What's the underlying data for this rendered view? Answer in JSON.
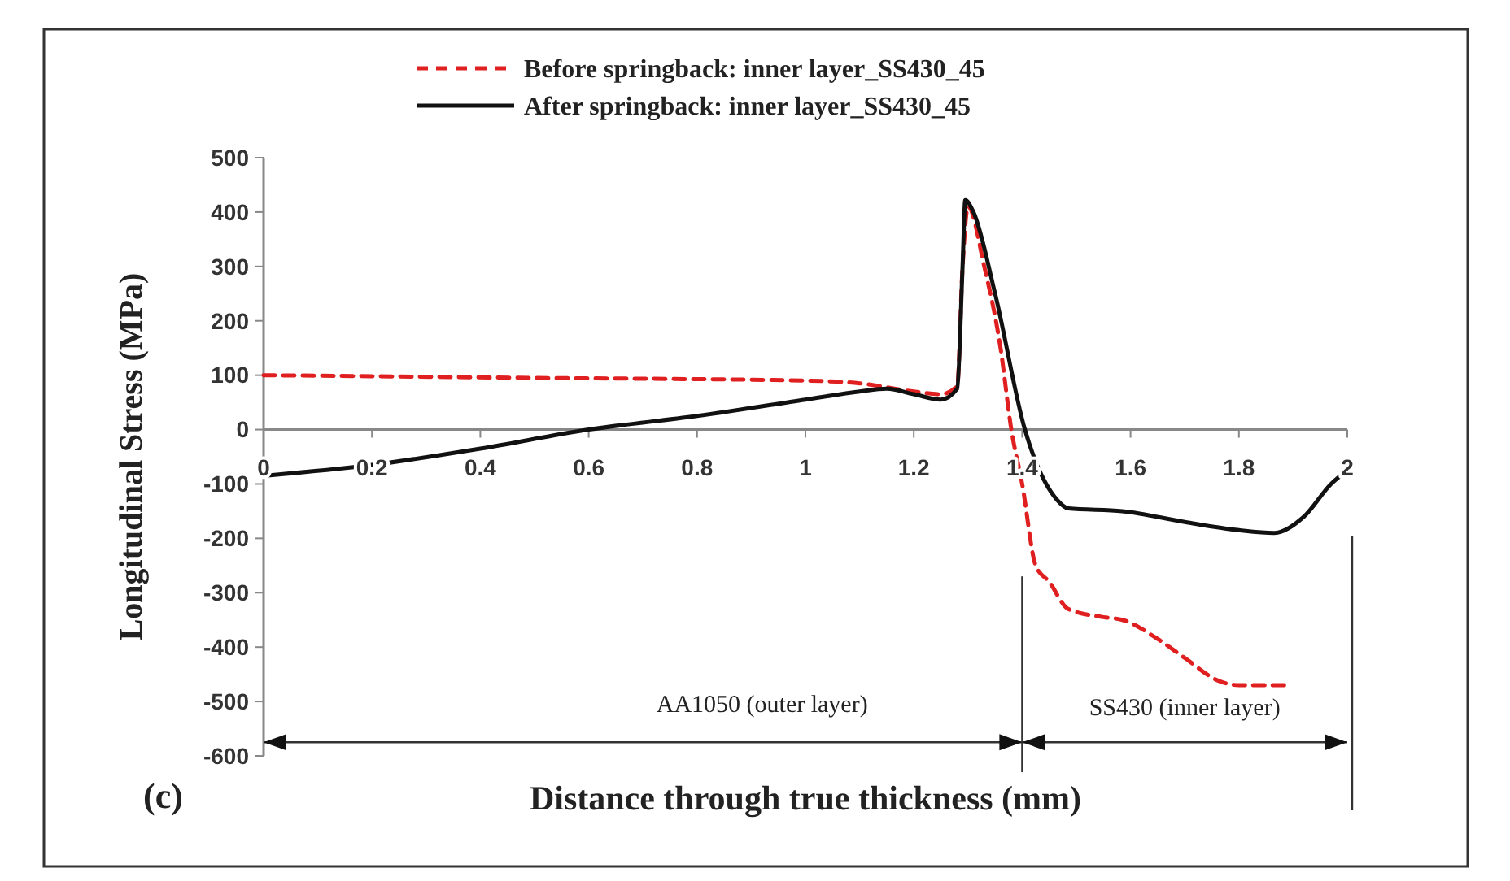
{
  "chart_data": {
    "type": "line",
    "xlabel": "Distance through true thickness (mm)",
    "ylabel": "Longitudinal Stress (MPa)",
    "xlim": [
      0,
      2
    ],
    "xticks": [
      0,
      0.2,
      0.4,
      0.6,
      0.8,
      1,
      1.2,
      1.4,
      1.6,
      1.8,
      2
    ],
    "ylim": [
      -600,
      500
    ],
    "yticks": [
      -600,
      -500,
      -400,
      -300,
      -200,
      -100,
      0,
      100,
      200,
      300,
      400,
      500
    ],
    "grid": false,
    "legend": "top",
    "annotations": [
      "AA1050 (outer layer)",
      "SS430 (inner layer)",
      "(c)"
    ],
    "series": [
      {
        "name": "Before springback: inner layer_SS430_45",
        "color": "#e02020",
        "line_style": "dashed",
        "x": [
          0,
          0.5,
          1.0,
          1.1,
          1.2,
          1.25,
          1.28,
          1.29,
          1.3,
          1.33,
          1.36,
          1.38,
          1.4,
          1.425,
          1.45,
          1.485,
          1.55,
          1.585,
          1.65,
          1.7,
          1.765,
          1.8,
          1.895
        ],
        "values": [
          100,
          95,
          90,
          85,
          70,
          65,
          80,
          300,
          410,
          300,
          150,
          0,
          -100,
          -250,
          -280,
          -330,
          -345,
          -350,
          -385,
          -420,
          -463,
          -470,
          -470
        ]
      },
      {
        "name": "After springback: inner layer_SS430_45",
        "color": "#111111",
        "line_style": "solid",
        "x": [
          0,
          0.2,
          0.4,
          0.6,
          0.8,
          1.0,
          1.1,
          1.15,
          1.2,
          1.25,
          1.28,
          1.29,
          1.295,
          1.31,
          1.35,
          1.405,
          1.465,
          1.485,
          1.585,
          1.7,
          1.8,
          1.865,
          1.92,
          1.97,
          2.0
        ],
        "values": [
          -85,
          -65,
          -35,
          0,
          25,
          55,
          70,
          75,
          65,
          55,
          75,
          300,
          422,
          400,
          250,
          0,
          -130,
          -145,
          -150,
          -170,
          -185,
          -190,
          -160,
          -100,
          -75
        ]
      }
    ]
  }
}
